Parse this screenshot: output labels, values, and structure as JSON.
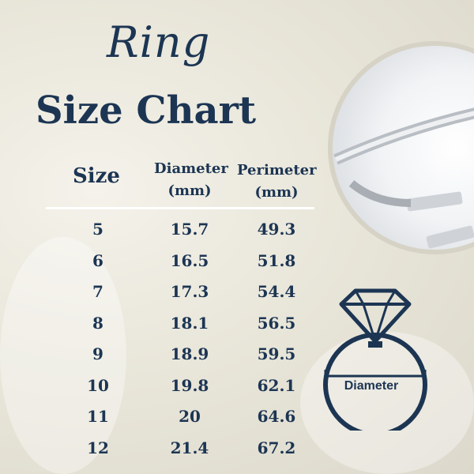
{
  "title_script": "Ring",
  "title_main": "Size Chart",
  "headers": {
    "size": "Size",
    "diameter": "Diameter",
    "diameter_unit": "(mm)",
    "perimeter": "Perimeter",
    "perimeter_unit": "(mm)"
  },
  "rows": [
    {
      "size": "5",
      "diameter": "15.7",
      "perimeter": "49.3"
    },
    {
      "size": "6",
      "diameter": "16.5",
      "perimeter": "51.8"
    },
    {
      "size": "7",
      "diameter": "17.3",
      "perimeter": "54.4"
    },
    {
      "size": "8",
      "diameter": "18.1",
      "perimeter": "56.5"
    },
    {
      "size": "9",
      "diameter": "18.9",
      "perimeter": "59.5"
    },
    {
      "size": "10",
      "diameter": "19.8",
      "perimeter": "62.1"
    },
    {
      "size": "11",
      "diameter": "20",
      "perimeter": "64.6"
    },
    {
      "size": "12",
      "diameter": "21.4",
      "perimeter": "67.2"
    }
  ],
  "diagram_label": "Diameter",
  "colors": {
    "text": "#1c3553",
    "background": "#ebe8dc"
  },
  "icons": [
    "ring-photo",
    "diamond-ring-icon"
  ]
}
